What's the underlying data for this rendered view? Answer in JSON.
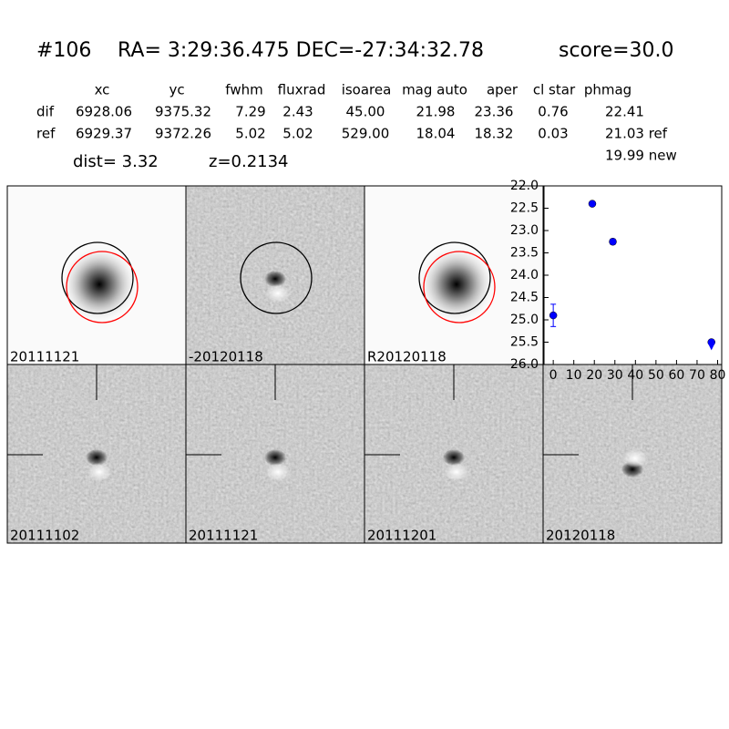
{
  "header": {
    "id": "#106",
    "coords": "RA= 3:29:36.475 DEC=-27:34:32.78",
    "score": "score=30.0"
  },
  "table": {
    "columns": [
      "xc",
      "yc",
      "fwhm",
      "fluxrad",
      "isoarea",
      "mag auto",
      "aper",
      "cl star",
      "phmag"
    ],
    "rows": [
      {
        "label": "dif",
        "cells": [
          "6928.06",
          "9375.32",
          "7.29",
          "2.43",
          "45.00",
          "21.98",
          "23.36",
          "0.76",
          "22.41"
        ]
      },
      {
        "label": "ref",
        "cells": [
          "6929.37",
          "9372.26",
          "5.02",
          "5.02",
          "529.00",
          "18.04",
          "18.32",
          "0.03",
          "21.03 ref"
        ]
      }
    ],
    "new": "19.99 new"
  },
  "dist": "dist=  3.32",
  "z": "z=0.2134",
  "panels": [
    "20111121",
    "-20120118",
    "R20120118",
    "20111102",
    "20111121",
    "20111201",
    "20120118"
  ],
  "chart_data": {
    "type": "scatter",
    "x": [
      0,
      19,
      29,
      77
    ],
    "values": [
      24.9,
      22.4,
      23.25,
      25.5
    ],
    "errors": [
      0.25,
      0.05,
      0.06,
      0.04
    ],
    "color": "#0000ff",
    "limits": {
      "x": [
        77
      ],
      "values": [
        25.6
      ]
    },
    "xlim": [
      -4.5,
      82
    ],
    "ylim": [
      26,
      22
    ],
    "xticks": [
      0,
      10,
      20,
      30,
      40,
      50,
      60,
      70,
      80
    ],
    "yticks": [
      {
        "value": 22,
        "label": "22.0"
      },
      {
        "value": 22.5,
        "label": "22.5"
      },
      {
        "value": 23,
        "label": "23.0"
      },
      {
        "value": 23.5,
        "label": "23.5"
      },
      {
        "value": 24,
        "label": "24.0"
      },
      {
        "value": 24.5,
        "label": "24.5"
      },
      {
        "value": 25,
        "label": "25.0"
      },
      {
        "value": 25.5,
        "label": "25.5"
      },
      {
        "value": 26,
        "label": "26.0"
      }
    ]
  }
}
